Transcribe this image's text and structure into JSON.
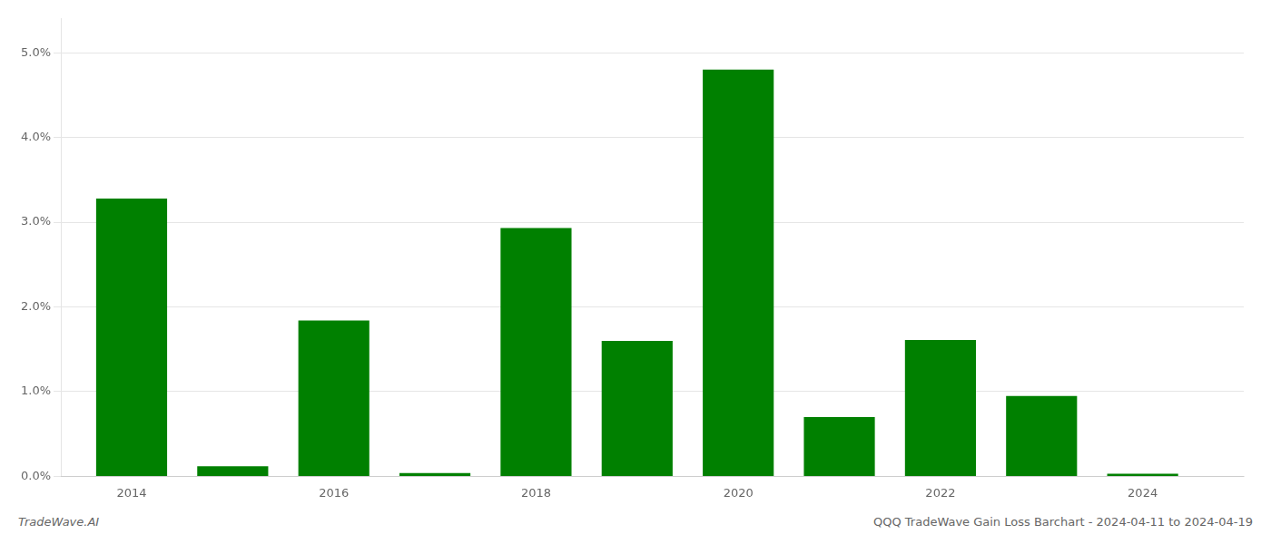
{
  "chart_data": {
    "type": "bar",
    "x": [
      2014,
      2015,
      2016,
      2017,
      2018,
      2019,
      2020,
      2021,
      2022,
      2023,
      2024
    ],
    "values": [
      3.28,
      0.12,
      1.84,
      0.04,
      2.93,
      1.6,
      4.8,
      0.7,
      1.61,
      0.95,
      0.03
    ],
    "color": "#008000",
    "xlim": [
      2013.3,
      2025.0
    ],
    "xticks": [
      2014,
      2016,
      2018,
      2020,
      2022,
      2024
    ],
    "ylim": [
      0,
      5.4
    ],
    "yticks": [
      {
        "value": 0.0,
        "label": "0.0%"
      },
      {
        "value": 1.0,
        "label": "1.0%"
      },
      {
        "value": 2.0,
        "label": "2.0%"
      },
      {
        "value": 3.0,
        "label": "3.0%"
      },
      {
        "value": 4.0,
        "label": "4.0%"
      },
      {
        "value": 5.0,
        "label": "5.0%"
      }
    ],
    "grid": true,
    "annotations": [
      "TradeWave.AI",
      "QQQ TradeWave Gain Loss Barchart - 2024-04-11 to 2024-04-19"
    ]
  }
}
